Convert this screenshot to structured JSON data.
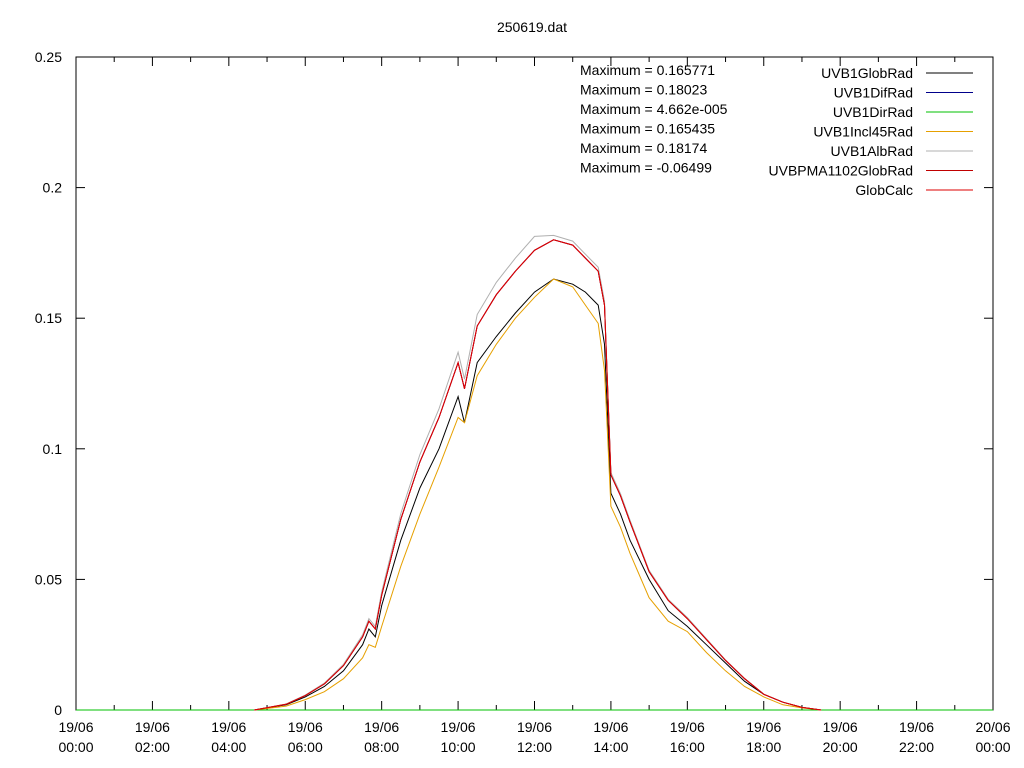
{
  "chart_data": {
    "type": "line",
    "title": "250619.dat",
    "xlabel": "",
    "ylabel": "",
    "xlim": [
      "19/06 00:00",
      "20/06 00:00"
    ],
    "ylim": [
      0,
      0.25
    ],
    "grid": false,
    "legend_position": "top-right",
    "x_ticks": [
      "19/06 00:00",
      "19/06 02:00",
      "19/06 04:00",
      "19/06 06:00",
      "19/06 08:00",
      "19/06 10:00",
      "19/06 12:00",
      "19/06 14:00",
      "19/06 16:00",
      "19/06 18:00",
      "19/06 20:00",
      "19/06 22:00",
      "20/06 00:00"
    ],
    "y_ticks": [
      "0",
      "0.05",
      "0.1",
      "0.15",
      "0.2",
      "0.25"
    ],
    "annotations": [
      "Maximum = 0.165771",
      "Maximum = 0.18023",
      "Maximum = 4.662e-005",
      "Maximum = 0.165435",
      "Maximum = 0.18174",
      "Maximum = -0.06499"
    ],
    "series": [
      {
        "name": "UVB1GlobRad",
        "color": "#000000",
        "x": [
          "19/06 04:40",
          "19/06 05:30",
          "19/06 06:00",
          "19/06 06:30",
          "19/06 07:00",
          "19/06 07:30",
          "19/06 07:40",
          "19/06 07:50",
          "19/06 08:00",
          "19/06 08:30",
          "19/06 09:00",
          "19/06 09:30",
          "19/06 10:00",
          "19/06 10:10",
          "19/06 10:30",
          "19/06 11:00",
          "19/06 11:30",
          "19/06 12:00",
          "19/06 12:30",
          "19/06 13:00",
          "19/06 13:20",
          "19/06 13:40",
          "19/06 13:50",
          "19/06 14:00",
          "19/06 14:15",
          "19/06 14:30",
          "19/06 15:00",
          "19/06 15:30",
          "19/06 16:00",
          "19/06 16:30",
          "19/06 17:00",
          "19/06 17:30",
          "19/06 18:00",
          "19/06 18:30",
          "19/06 19:00",
          "19/06 19:30"
        ],
        "y": [
          0,
          0.002,
          0.005,
          0.009,
          0.015,
          0.025,
          0.031,
          0.028,
          0.04,
          0.065,
          0.085,
          0.1,
          0.12,
          0.11,
          0.133,
          0.143,
          0.152,
          0.16,
          0.165,
          0.163,
          0.16,
          0.155,
          0.14,
          0.083,
          0.075,
          0.065,
          0.05,
          0.038,
          0.032,
          0.025,
          0.018,
          0.011,
          0.006,
          0.003,
          0.001,
          0
        ]
      },
      {
        "name": "UVB1DifRad",
        "color": "#00008b",
        "x": [
          "19/06 04:40",
          "19/06 05:30",
          "19/06 06:00",
          "19/06 06:30",
          "19/06 07:00",
          "19/06 07:30",
          "19/06 07:40",
          "19/06 07:50",
          "19/06 08:00",
          "19/06 08:30",
          "19/06 09:00",
          "19/06 09:30",
          "19/06 10:00",
          "19/06 10:10",
          "19/06 10:30",
          "19/06 11:00",
          "19/06 11:30",
          "19/06 12:00",
          "19/06 12:30",
          "19/06 13:00",
          "19/06 13:20",
          "19/06 13:40",
          "19/06 13:50",
          "19/06 14:00",
          "19/06 14:15",
          "19/06 14:30",
          "19/06 15:00",
          "19/06 15:30",
          "19/06 16:00",
          "19/06 16:30",
          "19/06 17:00",
          "19/06 17:30",
          "19/06 18:00",
          "19/06 18:30",
          "19/06 19:00",
          "19/06 19:30"
        ],
        "y": [
          0,
          0.0022,
          0.0055,
          0.01,
          0.017,
          0.028,
          0.034,
          0.031,
          0.044,
          0.073,
          0.095,
          0.112,
          0.133,
          0.123,
          0.147,
          0.159,
          0.168,
          0.176,
          0.18,
          0.178,
          0.173,
          0.168,
          0.155,
          0.09,
          0.082,
          0.072,
          0.053,
          0.042,
          0.035,
          0.027,
          0.019,
          0.012,
          0.006,
          0.003,
          0.001,
          0
        ]
      },
      {
        "name": "UVB1DirRad",
        "color": "#00c000",
        "x": [
          "19/06 00:00",
          "20/06 00:00"
        ],
        "y": [
          0,
          0
        ]
      },
      {
        "name": "UVB1Incl45Rad",
        "color": "#e6a000",
        "x": [
          "19/06 04:40",
          "19/06 05:30",
          "19/06 06:00",
          "19/06 06:30",
          "19/06 07:00",
          "19/06 07:30",
          "19/06 07:40",
          "19/06 07:50",
          "19/06 08:00",
          "19/06 08:30",
          "19/06 09:00",
          "19/06 09:30",
          "19/06 10:00",
          "19/06 10:10",
          "19/06 10:30",
          "19/06 11:00",
          "19/06 11:30",
          "19/06 12:00",
          "19/06 12:30",
          "19/06 13:00",
          "19/06 13:20",
          "19/06 13:40",
          "19/06 13:50",
          "19/06 14:00",
          "19/06 14:15",
          "19/06 14:30",
          "19/06 15:00",
          "19/06 15:30",
          "19/06 16:00",
          "19/06 16:30",
          "19/06 17:00",
          "19/06 17:30",
          "19/06 18:00",
          "19/06 18:30",
          "19/06 19:00",
          "19/06 19:30"
        ],
        "y": [
          0,
          0.0015,
          0.004,
          0.007,
          0.012,
          0.02,
          0.025,
          0.024,
          0.032,
          0.055,
          0.075,
          0.093,
          0.112,
          0.11,
          0.128,
          0.14,
          0.15,
          0.158,
          0.165,
          0.162,
          0.155,
          0.148,
          0.13,
          0.078,
          0.07,
          0.06,
          0.043,
          0.034,
          0.03,
          0.022,
          0.015,
          0.009,
          0.005,
          0.002,
          0.0008,
          0
        ]
      },
      {
        "name": "UVB1AlbRad",
        "color": "#b0b0b0",
        "x": [
          "19/06 04:40",
          "19/06 05:30",
          "19/06 06:00",
          "19/06 06:30",
          "19/06 07:00",
          "19/06 07:30",
          "19/06 07:40",
          "19/06 07:50",
          "19/06 08:00",
          "19/06 08:30",
          "19/06 09:00",
          "19/06 09:30",
          "19/06 10:00",
          "19/06 10:10",
          "19/06 10:30",
          "19/06 11:00",
          "19/06 11:30",
          "19/06 12:00",
          "19/06 12:30",
          "19/06 13:00",
          "19/06 13:20",
          "19/06 13:40",
          "19/06 13:50",
          "19/06 14:00",
          "19/06 14:15",
          "19/06 14:30",
          "19/06 15:00",
          "19/06 15:30",
          "19/06 16:00",
          "19/06 16:30",
          "19/06 17:00",
          "19/06 17:30",
          "19/06 18:00",
          "19/06 18:30",
          "19/06 19:00",
          "19/06 19:30"
        ],
        "y": [
          0,
          0.0023,
          0.0057,
          0.0103,
          0.0175,
          0.0288,
          0.035,
          0.032,
          0.0453,
          0.0752,
          0.0978,
          0.1153,
          0.137,
          0.1267,
          0.1514,
          0.1637,
          0.173,
          0.1813,
          0.1817,
          0.1795,
          0.1745,
          0.1695,
          0.1565,
          0.0909,
          0.0828,
          0.0727,
          0.0535,
          0.0424,
          0.0354,
          0.0273,
          0.0192,
          0.0121,
          0.0061,
          0.003,
          0.001,
          0
        ]
      },
      {
        "name": "UVBPMA1102GlobRad",
        "color": "#c00000",
        "x": [
          "19/06 04:40",
          "19/06 05:30",
          "19/06 06:00",
          "19/06 06:30",
          "19/06 07:00",
          "19/06 07:30",
          "19/06 07:40",
          "19/06 07:50",
          "19/06 08:00",
          "19/06 08:30",
          "19/06 09:00",
          "19/06 09:30",
          "19/06 10:00",
          "19/06 10:10",
          "19/06 10:30",
          "19/06 11:00",
          "19/06 11:30",
          "19/06 12:00",
          "19/06 12:30",
          "19/06 13:00",
          "19/06 13:20",
          "19/06 13:40",
          "19/06 13:50",
          "19/06 14:00",
          "19/06 14:15",
          "19/06 14:30",
          "19/06 15:00",
          "19/06 15:30",
          "19/06 16:00",
          "19/06 16:30",
          "19/06 17:00",
          "19/06 17:30",
          "19/06 18:00",
          "19/06 18:30",
          "19/06 19:00",
          "19/06 19:30"
        ],
        "y": [
          0,
          0.0022,
          0.0055,
          0.01,
          0.017,
          0.028,
          0.034,
          0.031,
          0.044,
          0.073,
          0.095,
          0.112,
          0.133,
          0.123,
          0.147,
          0.159,
          0.168,
          0.176,
          0.18,
          0.178,
          0.173,
          0.168,
          0.155,
          0.09,
          0.082,
          0.072,
          0.053,
          0.042,
          0.035,
          0.027,
          0.019,
          0.012,
          0.006,
          0.003,
          0.001,
          0
        ]
      },
      {
        "name": "GlobCalc",
        "color": "#dd0000",
        "x": [
          "19/06 04:40",
          "19/06 05:30",
          "19/06 06:00",
          "19/06 06:30",
          "19/06 07:00",
          "19/06 07:30",
          "19/06 07:40",
          "19/06 07:50",
          "19/06 08:00",
          "19/06 08:30",
          "19/06 09:00",
          "19/06 09:30",
          "19/06 10:00",
          "19/06 10:10",
          "19/06 10:30",
          "19/06 11:00",
          "19/06 11:30",
          "19/06 12:00",
          "19/06 12:30",
          "19/06 13:00",
          "19/06 13:20",
          "19/06 13:40",
          "19/06 13:50",
          "19/06 14:00",
          "19/06 14:15",
          "19/06 14:30",
          "19/06 15:00",
          "19/06 15:30",
          "19/06 16:00",
          "19/06 16:30",
          "19/06 17:00",
          "19/06 17:30",
          "19/06 18:00",
          "19/06 18:30",
          "19/06 19:00",
          "19/06 19:30"
        ],
        "y": [
          0,
          0.0022,
          0.0055,
          0.01,
          0.017,
          0.028,
          0.034,
          0.031,
          0.044,
          0.073,
          0.095,
          0.112,
          0.133,
          0.123,
          0.147,
          0.159,
          0.168,
          0.176,
          0.18,
          0.178,
          0.173,
          0.168,
          0.155,
          0.09,
          0.082,
          0.072,
          0.053,
          0.042,
          0.035,
          0.027,
          0.019,
          0.012,
          0.006,
          0.003,
          0.001,
          0
        ]
      }
    ]
  }
}
